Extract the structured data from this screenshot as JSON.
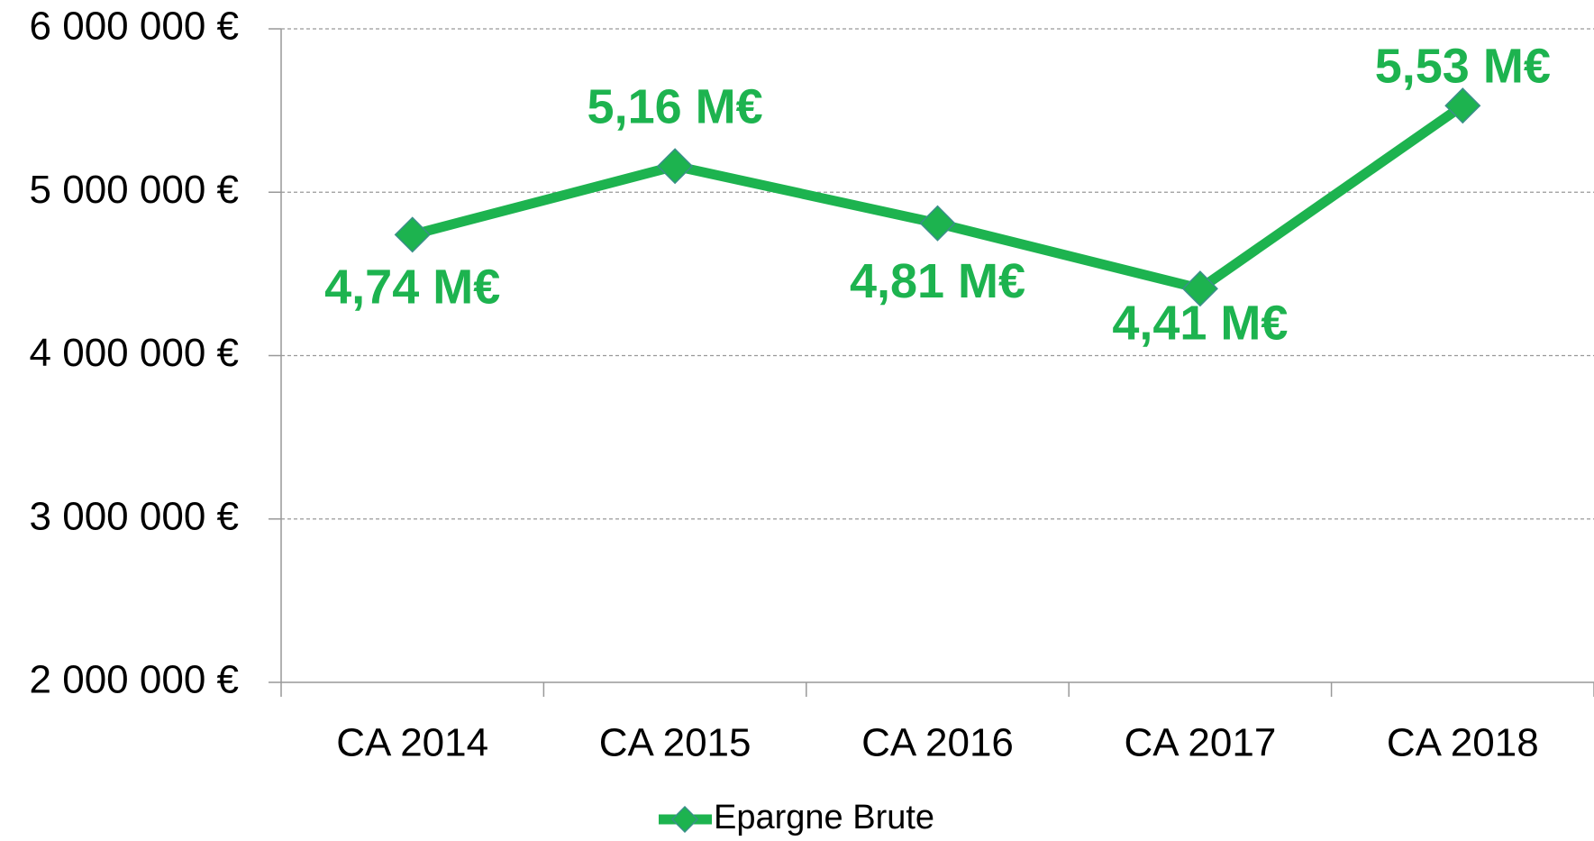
{
  "chart_data": {
    "type": "line",
    "categories": [
      "CA 2014",
      "CA 2015",
      "CA 2016",
      "CA 2017",
      "CA 2018"
    ],
    "series": [
      {
        "name": "Epargne Brute",
        "color": "#1db34f",
        "values": [
          4740000,
          5160000,
          4810000,
          4410000,
          5530000
        ],
        "value_labels": [
          "4,74 M€",
          "5,16 M€",
          "4,81 M€",
          "4,41 M€",
          "5,53 M€"
        ]
      }
    ],
    "ylim": [
      2000000,
      6000000
    ],
    "yticks": [
      {
        "value": 2000000,
        "label": "2 000 000 €"
      },
      {
        "value": 3000000,
        "label": "3 000 000 €"
      },
      {
        "value": 4000000,
        "label": "4 000 000 €"
      },
      {
        "value": 5000000,
        "label": "5 000 000 €"
      },
      {
        "value": 6000000,
        "label": "6 000 000 €"
      }
    ],
    "grid": true,
    "legend": "bottom"
  }
}
